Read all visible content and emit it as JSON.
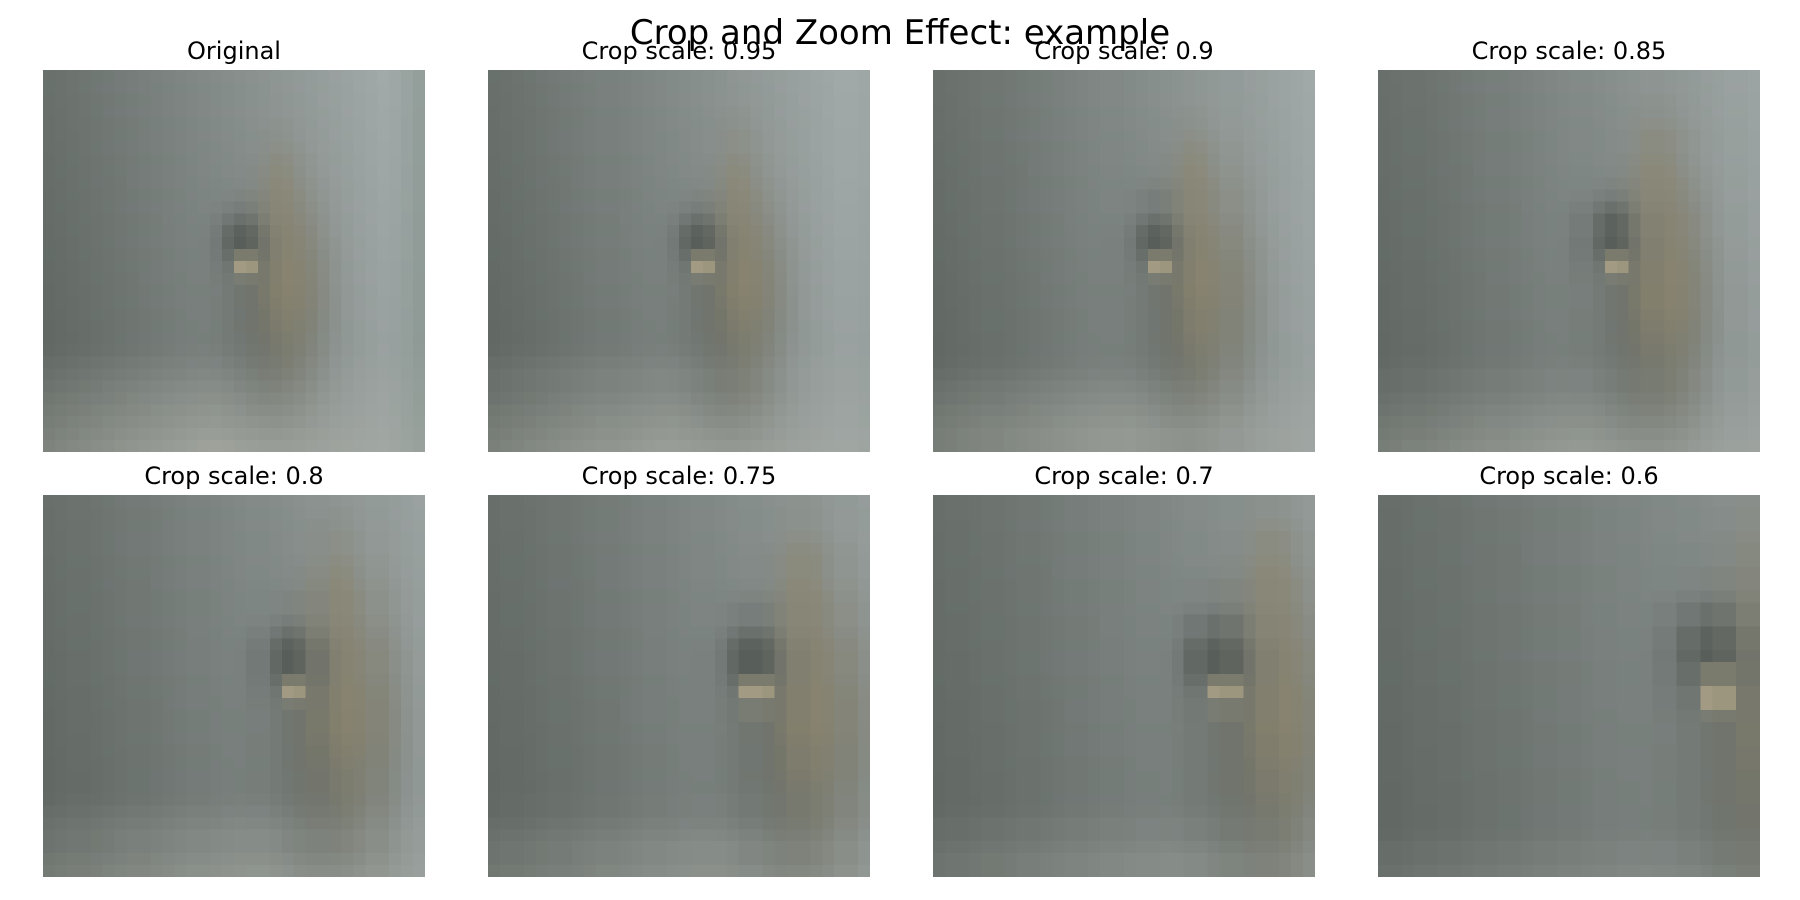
{
  "figure": {
    "title": "Crop and Zoom Effect: example",
    "panels": [
      {
        "label": "Original",
        "crop_scale": 1.0
      },
      {
        "label": "Crop scale: 0.95",
        "crop_scale": 0.95
      },
      {
        "label": "Crop scale: 0.9",
        "crop_scale": 0.9
      },
      {
        "label": "Crop scale: 0.85",
        "crop_scale": 0.85
      },
      {
        "label": "Crop scale: 0.8",
        "crop_scale": 0.8
      },
      {
        "label": "Crop scale: 0.75",
        "crop_scale": 0.75
      },
      {
        "label": "Crop scale: 0.7",
        "crop_scale": 0.7
      },
      {
        "label": "Crop scale: 0.6",
        "crop_scale": 0.6
      }
    ],
    "image_description": "blurred low-resolution photo of a small bird-like figure against a grey wall",
    "colors": {
      "wall_dark": "#5e6560",
      "wall_light": "#a9b1b1",
      "subject_dark": "#575d58",
      "subject_tan": "#8d8670",
      "subject_highlight": "#c4b591",
      "floor": "#b3b5ad"
    }
  }
}
